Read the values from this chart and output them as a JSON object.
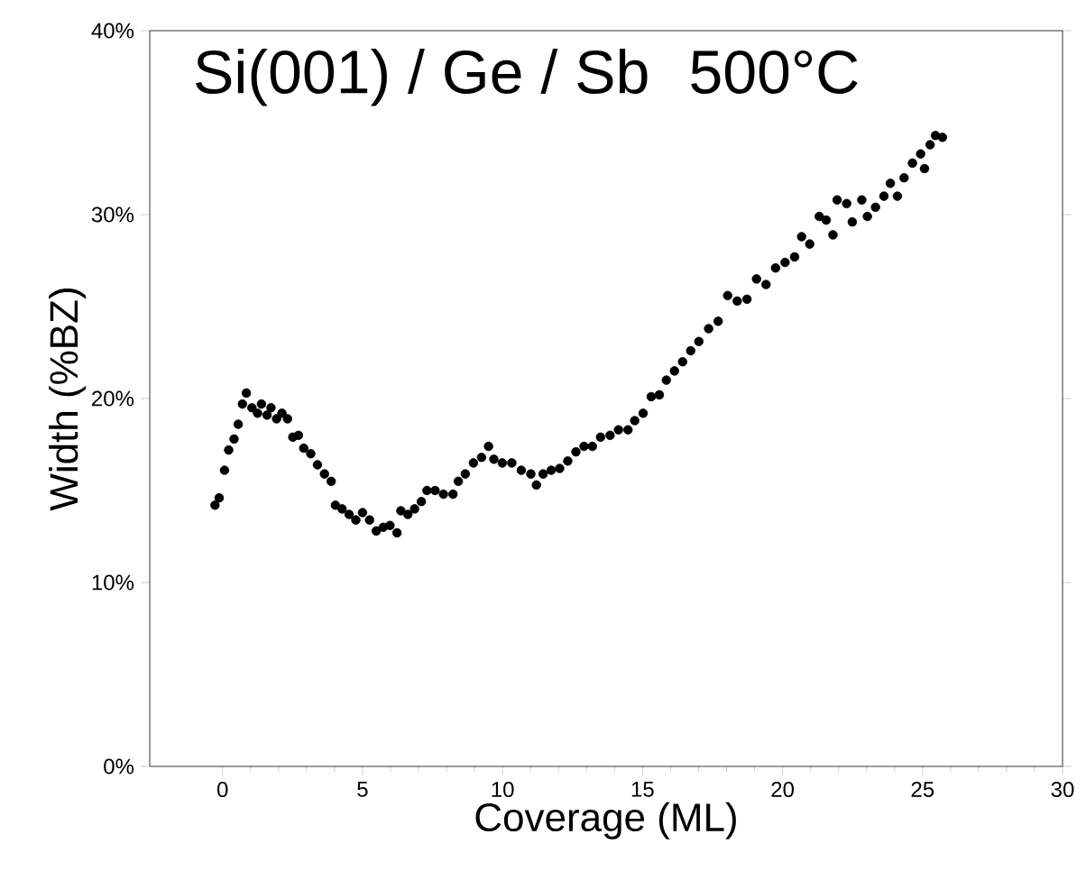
{
  "chart_data": {
    "type": "scatter",
    "title": "Si(001) / Ge / Sb",
    "subtitle": "500°C",
    "xlabel": "Coverage (ML)",
    "ylabel": "Width (%BZ)",
    "xlim": [
      -2.6,
      30
    ],
    "ylim": [
      0,
      40
    ],
    "xticks": [
      0,
      5,
      10,
      15,
      20,
      25,
      30
    ],
    "yticks": [
      {
        "value": 0,
        "label": "0%"
      },
      {
        "value": 10,
        "label": "10%"
      },
      {
        "value": 20,
        "label": "20%"
      },
      {
        "value": 30,
        "label": "30%"
      },
      {
        "value": 40,
        "label": "40%"
      }
    ],
    "marker": "circle",
    "grid": false,
    "series": [
      {
        "color": "#000000",
        "x": [
          -0.27,
          -0.12,
          0.07,
          0.22,
          0.41,
          0.56,
          0.71,
          0.85,
          1.05,
          1.25,
          1.39,
          1.59,
          1.73,
          1.93,
          2.12,
          2.32,
          2.51,
          2.71,
          2.9,
          3.15,
          3.39,
          3.64,
          3.88,
          4.03,
          4.27,
          4.52,
          4.76,
          5.0,
          5.25,
          5.49,
          5.74,
          5.98,
          6.23,
          6.37,
          6.62,
          6.86,
          7.1,
          7.3,
          7.59,
          7.89,
          8.23,
          8.42,
          8.67,
          8.96,
          9.25,
          9.5,
          9.69,
          9.99,
          10.33,
          10.67,
          11.01,
          11.21,
          11.45,
          11.74,
          12.04,
          12.33,
          12.62,
          12.91,
          13.21,
          13.5,
          13.84,
          14.14,
          14.48,
          14.72,
          15.02,
          15.31,
          15.6,
          15.85,
          16.14,
          16.43,
          16.72,
          17.01,
          17.36,
          17.7,
          18.04,
          18.38,
          18.73,
          19.07,
          19.41,
          19.75,
          20.09,
          20.43,
          20.68,
          20.97,
          21.31,
          21.56,
          21.8,
          21.95,
          22.29,
          22.49,
          22.83,
          23.03,
          23.32,
          23.62,
          23.85,
          24.1,
          24.34,
          24.64,
          24.93,
          25.07,
          25.27,
          25.46,
          25.71
        ],
        "values": [
          14.2,
          14.6,
          16.1,
          17.2,
          17.8,
          18.6,
          19.7,
          20.3,
          19.5,
          19.2,
          19.7,
          19.1,
          19.5,
          18.9,
          19.2,
          18.9,
          17.9,
          18.0,
          17.3,
          17.0,
          16.4,
          15.9,
          15.5,
          14.2,
          14.0,
          13.7,
          13.4,
          13.8,
          13.4,
          12.8,
          13.0,
          13.1,
          12.7,
          13.9,
          13.7,
          14.0,
          14.4,
          15.0,
          15.0,
          14.8,
          14.8,
          15.5,
          15.9,
          16.5,
          16.8,
          17.4,
          16.7,
          16.5,
          16.5,
          16.1,
          15.9,
          15.3,
          15.9,
          16.1,
          16.2,
          16.6,
          17.1,
          17.4,
          17.4,
          17.9,
          18.0,
          18.3,
          18.3,
          18.8,
          19.2,
          20.1,
          20.2,
          21.0,
          21.5,
          22.0,
          22.6,
          23.1,
          23.8,
          24.2,
          25.6,
          25.3,
          25.4,
          26.5,
          26.2,
          27.1,
          27.4,
          27.7,
          28.8,
          28.4,
          29.9,
          29.7,
          28.9,
          30.8,
          30.6,
          29.6,
          30.8,
          29.9,
          30.4,
          31.0,
          31.7,
          31.0,
          32.0,
          32.8,
          33.3,
          32.5,
          33.8,
          34.3,
          34.2
        ]
      }
    ]
  }
}
